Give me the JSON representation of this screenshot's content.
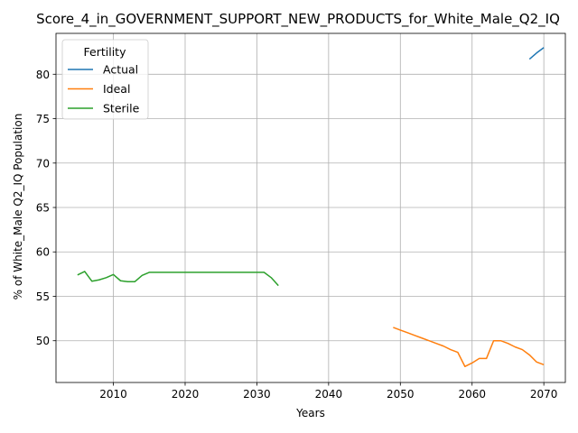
{
  "chart_data": {
    "type": "line",
    "title": "Score_4_in_GOVERNMENT_SUPPORT_NEW_PRODUCTS_for_White_Male_Q2_IQ",
    "xlabel": "Years",
    "ylabel": "% of White_Male Q2_IQ Population",
    "xlim": [
      2002,
      2073
    ],
    "ylim": [
      45.3,
      84.6
    ],
    "x_ticks": [
      2010,
      2020,
      2030,
      2040,
      2050,
      2060,
      2070
    ],
    "y_ticks": [
      50,
      55,
      60,
      65,
      70,
      75,
      80
    ],
    "grid": true,
    "legend": {
      "title": "Fertility",
      "placement": "top-left"
    },
    "series": [
      {
        "name": "Actual",
        "color": "#1f77b4",
        "x": [
          2068,
          2069,
          2070
        ],
        "y": [
          81.7,
          82.4,
          83.0
        ]
      },
      {
        "name": "Ideal",
        "color": "#ff7f0e",
        "x": [
          2049,
          2050,
          2051,
          2052,
          2053,
          2054,
          2055,
          2056,
          2057,
          2058,
          2059,
          2060,
          2061,
          2062,
          2063,
          2064,
          2065,
          2066,
          2067,
          2068,
          2069,
          2070
        ],
        "y": [
          51.5,
          51.2,
          50.9,
          50.6,
          50.3,
          50.0,
          49.7,
          49.4,
          49.0,
          48.7,
          47.1,
          47.5,
          48.0,
          48.0,
          50.0,
          50.0,
          49.7,
          49.3,
          49.0,
          48.4,
          47.6,
          47.3
        ]
      },
      {
        "name": "Sterile",
        "color": "#2ca02c",
        "x": [
          2005,
          2006,
          2007,
          2008,
          2009,
          2010,
          2011,
          2012,
          2013,
          2014,
          2015,
          2016,
          2017,
          2018,
          2019,
          2020,
          2021,
          2022,
          2023,
          2024,
          2025,
          2026,
          2027,
          2028,
          2029,
          2030,
          2031,
          2032,
          2033
        ],
        "y": [
          57.4,
          57.8,
          56.7,
          56.85,
          57.1,
          57.45,
          56.75,
          56.65,
          56.65,
          57.35,
          57.7,
          57.7,
          57.7,
          57.7,
          57.7,
          57.7,
          57.7,
          57.7,
          57.7,
          57.7,
          57.7,
          57.7,
          57.7,
          57.7,
          57.7,
          57.7,
          57.7,
          57.1,
          56.2
        ]
      }
    ]
  }
}
